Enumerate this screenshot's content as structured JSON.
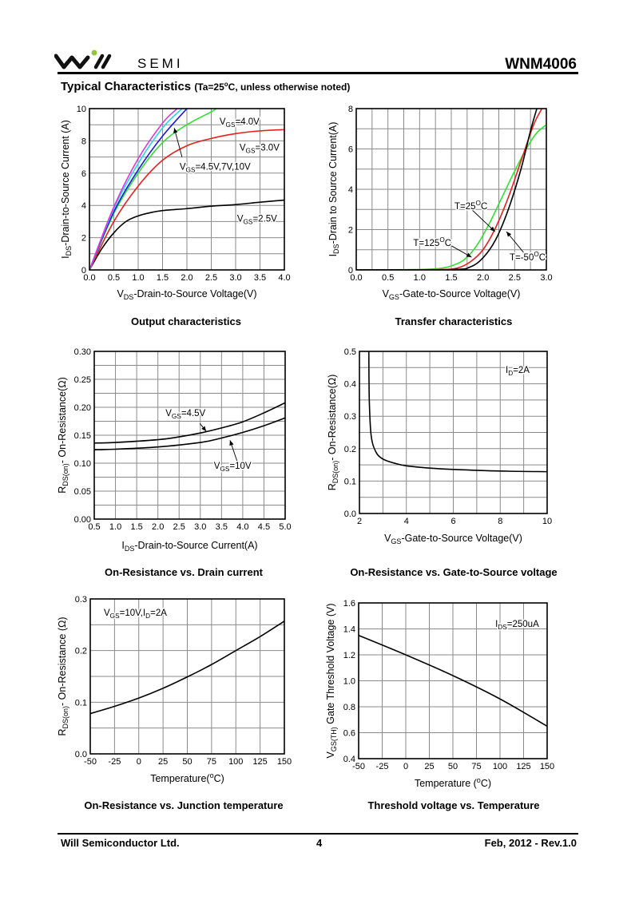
{
  "header": {
    "logo_text": "will SEMI",
    "logo_semi": "SEMI",
    "part_number": "WNM4006",
    "section_title": "Typical Characteristics",
    "condition_pre": "(Ta=25",
    "condition_sup": "o",
    "condition_post": "C, unless otherwise noted)"
  },
  "footer": {
    "company": "Will Semiconductor Ltd.",
    "page": "4",
    "date_rev": "Feb, 2012 - Rev.1.0"
  },
  "colors": {
    "grid": "#8a8a8a",
    "frame": "#000000"
  },
  "chart_data": [
    {
      "type": "line",
      "title": "Output characteristics",
      "xlabel": [
        {
          "t": "V"
        },
        {
          "t": "DS",
          "s": "sub"
        },
        {
          "t": "-Drain-to-Source Voltage(V)"
        }
      ],
      "ylabel": [
        {
          "t": "I"
        },
        {
          "t": "DS",
          "s": "sub"
        },
        {
          "t": "-Drain-to-Source Current (A)"
        }
      ],
      "xlim": [
        0,
        4
      ],
      "ylim": [
        0,
        10
      ],
      "xticks": [
        0,
        0.5,
        1,
        1.5,
        2,
        2.5,
        3,
        3.5,
        4
      ],
      "xtick_labels": [
        "0.0",
        "0.5",
        "1.0",
        "1.5",
        "2.0",
        "2.5",
        "3.0",
        "3.5",
        "4.0"
      ],
      "yticks": [
        0,
        2,
        4,
        6,
        8,
        10
      ],
      "ytick_labels": [
        "0",
        "2",
        "4",
        "6",
        "8",
        "10"
      ],
      "grid": true,
      "series": [
        {
          "name": "VGS=2.5V",
          "color": "#000000",
          "x": [
            0,
            0.25,
            0.5,
            0.75,
            1,
            1.25,
            1.5,
            2,
            2.5,
            3,
            3.5,
            4
          ],
          "y": [
            0,
            1.3,
            2.3,
            3.0,
            3.35,
            3.55,
            3.68,
            3.8,
            3.95,
            4.05,
            4.2,
            4.33
          ]
        },
        {
          "name": "VGS=3.0V",
          "color": "#e8201c",
          "x": [
            0,
            0.5,
            1,
            1.5,
            2,
            2.5,
            3,
            3.5,
            4
          ],
          "y": [
            0,
            3.0,
            5.2,
            6.8,
            7.7,
            8.15,
            8.45,
            8.62,
            8.7
          ]
        },
        {
          "name": "VGS=4.0V",
          "color": "#2fe22f",
          "x": [
            0,
            0.5,
            1,
            1.5,
            2,
            2.5,
            2.6
          ],
          "y": [
            0,
            3.5,
            6.0,
            7.9,
            9.0,
            9.8,
            10
          ]
        },
        {
          "name": "VGS=4.5V",
          "color": "#1a1ae0",
          "x": [
            0,
            0.5,
            1,
            1.5,
            2
          ],
          "y": [
            0,
            3.6,
            6.2,
            8.3,
            10
          ]
        },
        {
          "name": "VGS=7V",
          "color": "#28d8e8",
          "x": [
            0,
            0.5,
            1,
            1.5,
            1.9
          ],
          "y": [
            0,
            3.8,
            6.6,
            8.8,
            10
          ]
        },
        {
          "name": "VGS=10V",
          "color": "#e030e0",
          "x": [
            0,
            0.5,
            1,
            1.5,
            1.8
          ],
          "y": [
            0,
            3.9,
            6.9,
            9.1,
            10
          ]
        }
      ],
      "annotations": [
        {
          "x": 2.67,
          "y": 9.2,
          "text": [
            {
              "t": "V"
            },
            {
              "t": "GS",
              "s": "sub"
            },
            {
              "t": "=4.0V"
            }
          ]
        },
        {
          "x": 3.08,
          "y": 7.6,
          "text": [
            {
              "t": "V"
            },
            {
              "t": "GS",
              "s": "sub"
            },
            {
              "t": "=3.0V"
            }
          ]
        },
        {
          "x": 1.85,
          "y": 6.4,
          "text": [
            {
              "t": "V"
            },
            {
              "t": "GS",
              "s": "sub"
            },
            {
              "t": "=4.5V,7V,10V"
            }
          ],
          "arrow": [
            1.9,
            7.0,
            1.74,
            8.8
          ]
        },
        {
          "x": 3.03,
          "y": 3.2,
          "text": [
            {
              "t": "V"
            },
            {
              "t": "GS",
              "s": "sub"
            },
            {
              "t": "=2.5V"
            }
          ]
        }
      ]
    },
    {
      "type": "line",
      "title": "Transfer characteristics",
      "xlabel": [
        {
          "t": "V"
        },
        {
          "t": "GS",
          "s": "sub"
        },
        {
          "t": "-Gate-to-Source Voltage(V)"
        }
      ],
      "ylabel": [
        {
          "t": "I"
        },
        {
          "t": "DS",
          "s": "sub"
        },
        {
          "t": "-Drain to Source Current(A)"
        }
      ],
      "xlim": [
        0,
        3
      ],
      "ylim": [
        0,
        8
      ],
      "xticks": [
        0,
        0.5,
        1,
        1.5,
        2,
        2.5,
        3
      ],
      "xtick_labels": [
        "0.0",
        "0.5",
        "1.0",
        "1.5",
        "2.0",
        "2.5",
        "3.0"
      ],
      "yticks": [
        0,
        2,
        4,
        6,
        8
      ],
      "ytick_labels": [
        "0",
        "2",
        "4",
        "6",
        "8"
      ],
      "grid": true,
      "series": [
        {
          "name": "T=25°C",
          "color": "#2fe22f",
          "x": [
            0,
            1,
            1.3,
            1.5,
            1.7,
            1.9,
            2.1,
            2.3,
            2.5,
            2.7,
            2.85,
            3
          ],
          "y": [
            0,
            0.02,
            0.07,
            0.2,
            0.5,
            1.2,
            2.3,
            3.6,
            4.9,
            6.1,
            6.8,
            7.2
          ]
        },
        {
          "name": "T=125°C",
          "color": "#e8201c",
          "x": [
            0,
            1.3,
            1.6,
            1.8,
            2,
            2.2,
            2.4,
            2.6,
            2.8,
            2.93
          ],
          "y": [
            0,
            0.02,
            0.1,
            0.4,
            1.0,
            2.1,
            3.6,
            5.4,
            7.2,
            8
          ]
        },
        {
          "name": "T=-50°C",
          "color": "#000000",
          "x": [
            0,
            1.5,
            1.8,
            2,
            2.2,
            2.4,
            2.6,
            2.75,
            2.85
          ],
          "y": [
            0,
            0.02,
            0.15,
            0.6,
            1.5,
            3.0,
            5.0,
            6.9,
            8
          ]
        }
      ],
      "annotations": [
        {
          "x": 1.55,
          "y": 3.17,
          "text": [
            {
              "t": "T=25"
            },
            {
              "t": "O",
              "s": "sup"
            },
            {
              "t": "C"
            }
          ],
          "arrow": [
            1.82,
            3.0,
            2.19,
            1.9
          ]
        },
        {
          "x": 0.9,
          "y": 1.35,
          "text": [
            {
              "t": "T=125"
            },
            {
              "t": "O",
              "s": "sup"
            },
            {
              "t": "C"
            }
          ],
          "arrow": [
            1.5,
            1.2,
            1.82,
            0.63
          ]
        },
        {
          "x": 2.42,
          "y": 0.63,
          "text": [
            {
              "t": "T=-50"
            },
            {
              "t": "O",
              "s": "sup"
            },
            {
              "t": "C"
            }
          ],
          "arrow": [
            2.64,
            0.87,
            2.37,
            1.9
          ]
        }
      ]
    },
    {
      "type": "line",
      "title": "On-Resistance vs. Drain current",
      "xlabel": [
        {
          "t": "I"
        },
        {
          "t": "DS",
          "s": "sub"
        },
        {
          "t": "-Drain-to-Source Current(A)"
        }
      ],
      "ylabel": [
        {
          "t": "R"
        },
        {
          "t": "DS(on)",
          "s": "sub"
        },
        {
          "t": "- On-Resistance(Ω)"
        }
      ],
      "xlim": [
        0.5,
        5
      ],
      "ylim": [
        0,
        0.3
      ],
      "xticks": [
        0.5,
        1,
        1.5,
        2,
        2.5,
        3,
        3.5,
        4,
        4.5,
        5
      ],
      "xtick_labels": [
        "0.5",
        "1.0",
        "1.5",
        "2.0",
        "2.5",
        "3.0",
        "3.5",
        "4.0",
        "4.5",
        "5.0"
      ],
      "yticks": [
        0,
        0.05,
        0.1,
        0.15,
        0.2,
        0.25,
        0.3
      ],
      "ytick_labels": [
        "0.00",
        "0.05",
        "0.10",
        "0.15",
        "0.20",
        "0.25",
        "0.30"
      ],
      "grid": true,
      "series": [
        {
          "name": "VGS=4.5V",
          "color": "#000000",
          "x": [
            0.5,
            1,
            2,
            2.5,
            3,
            3.5,
            4,
            4.5,
            5
          ],
          "y": [
            0.136,
            0.137,
            0.142,
            0.147,
            0.154,
            0.163,
            0.174,
            0.19,
            0.208
          ]
        },
        {
          "name": "VGS=10V",
          "color": "#000000",
          "x": [
            0.5,
            1,
            2,
            3,
            3.5,
            4,
            4.5,
            5
          ],
          "y": [
            0.124,
            0.125,
            0.129,
            0.137,
            0.145,
            0.155,
            0.167,
            0.181
          ]
        }
      ],
      "annotations": [
        {
          "x": 2.18,
          "y": 0.19,
          "text": [
            {
              "t": "V"
            },
            {
              "t": "GS",
              "s": "sub"
            },
            {
              "t": "=4.5V"
            }
          ],
          "arrow": [
            2.99,
            0.171,
            3.14,
            0.157
          ]
        },
        {
          "x": 3.32,
          "y": 0.096,
          "text": [
            {
              "t": "V"
            },
            {
              "t": "GS",
              "s": "sub"
            },
            {
              "t": "=10V"
            }
          ],
          "arrow": [
            3.87,
            0.103,
            3.7,
            0.141
          ]
        }
      ]
    },
    {
      "type": "line",
      "title": "On-Resistance vs. Gate-to-Source voltage",
      "xlabel": [
        {
          "t": "V"
        },
        {
          "t": "GS",
          "s": "sub"
        },
        {
          "t": "-Gate-to-Source Voltage(V)"
        }
      ],
      "ylabel": [
        {
          "t": "R"
        },
        {
          "t": "DS(on)",
          "s": "sub"
        },
        {
          "t": "- On-Resistance(Ω)"
        }
      ],
      "xlim": [
        2,
        10
      ],
      "ylim": [
        0,
        0.5
      ],
      "xticks": [
        2,
        4,
        6,
        8,
        10
      ],
      "xtick_labels": [
        "2",
        "4",
        "6",
        "8",
        "10"
      ],
      "yticks": [
        0,
        0.1,
        0.2,
        0.3,
        0.4,
        0.5
      ],
      "ytick_labels": [
        "0.0",
        "0.1",
        "0.2",
        "0.3",
        "0.4",
        "0.5"
      ],
      "grid": true,
      "series": [
        {
          "name": "ID=2A",
          "color": "#000000",
          "x": [
            2.4,
            2.42,
            2.5,
            2.7,
            3,
            3.5,
            4,
            5,
            6,
            8,
            10
          ],
          "y": [
            0.5,
            0.35,
            0.24,
            0.19,
            0.168,
            0.155,
            0.147,
            0.14,
            0.136,
            0.131,
            0.129
          ]
        }
      ],
      "annotations": [
        {
          "x": 8.23,
          "y": 0.443,
          "text": [
            {
              "t": "I"
            },
            {
              "t": "D",
              "s": "sub"
            },
            {
              "t": "=2A"
            }
          ]
        }
      ]
    },
    {
      "type": "line",
      "title": "On-Resistance vs. Junction temperature",
      "xlabel": [
        {
          "t": "Temperature("
        },
        {
          "t": "o",
          "s": "sup"
        },
        {
          "t": "C)"
        }
      ],
      "ylabel": [
        {
          "t": "R"
        },
        {
          "t": "DS(on)",
          "s": "sub"
        },
        {
          "t": "- On-Resistance (Ω)"
        }
      ],
      "xlim": [
        -50,
        150
      ],
      "ylim": [
        0,
        0.3
      ],
      "xticks": [
        -50,
        -25,
        0,
        25,
        50,
        75,
        100,
        125,
        150
      ],
      "xtick_labels": [
        "-50",
        "-25",
        "0",
        "25",
        "50",
        "75",
        "100",
        "125",
        "150"
      ],
      "yticks": [
        0,
        0.1,
        0.2,
        0.3
      ],
      "ytick_labels": [
        "0.0",
        "0.1",
        "0.2",
        "0.3"
      ],
      "grid": true,
      "series": [
        {
          "name": "VGS=10V,ID=2A",
          "color": "#000000",
          "x": [
            -50,
            -25,
            0,
            25,
            50,
            75,
            100,
            125,
            150
          ],
          "y": [
            0.078,
            0.092,
            0.108,
            0.127,
            0.149,
            0.173,
            0.2,
            0.227,
            0.257
          ]
        }
      ],
      "annotations": [
        {
          "x": -36,
          "y": 0.274,
          "text": [
            {
              "t": "V"
            },
            {
              "t": "GS",
              "s": "sub"
            },
            {
              "t": "=10V,I"
            },
            {
              "t": "D",
              "s": "sub"
            },
            {
              "t": "=2A"
            }
          ]
        }
      ]
    },
    {
      "type": "line",
      "title": "Threshold voltage vs. Temperature",
      "xlabel": [
        {
          "t": "Temperature ("
        },
        {
          "t": "o",
          "s": "sup"
        },
        {
          "t": "C)"
        }
      ],
      "ylabel": [
        {
          "t": "V"
        },
        {
          "t": "GS(TH)",
          "s": "sub"
        },
        {
          "t": " Gate Threshold Voltage (V)"
        }
      ],
      "xlim": [
        -50,
        150
      ],
      "ylim": [
        0.4,
        1.6
      ],
      "xticks": [
        -50,
        -25,
        0,
        25,
        50,
        75,
        100,
        125,
        150
      ],
      "xtick_labels": [
        "-50",
        "-25",
        "0",
        "25",
        "50",
        "75",
        "100",
        "125",
        "150"
      ],
      "yticks": [
        0.4,
        0.6,
        0.8,
        1.0,
        1.2,
        1.4,
        1.6
      ],
      "ytick_labels": [
        "0.4",
        "0.6",
        "0.8",
        "1.0",
        "1.2",
        "1.4",
        "1.6"
      ],
      "grid": true,
      "series": [
        {
          "name": "IDS=250uA",
          "color": "#000000",
          "x": [
            -50,
            0,
            50,
            100,
            150
          ],
          "y": [
            1.35,
            1.2,
            1.04,
            0.86,
            0.65
          ]
        }
      ],
      "annotations": [
        {
          "x": 95,
          "y": 1.44,
          "text": [
            {
              "t": "I"
            },
            {
              "t": "DS",
              "s": "sub"
            },
            {
              "t": "=250uA"
            }
          ]
        }
      ]
    }
  ]
}
